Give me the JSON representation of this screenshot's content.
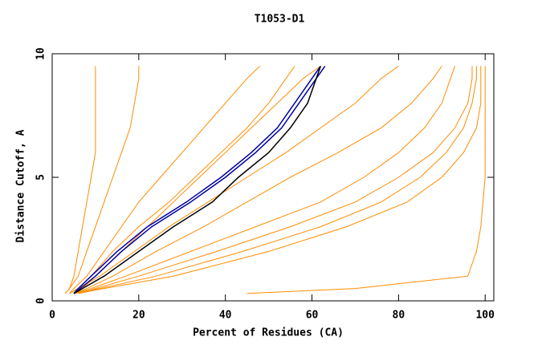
{
  "chart_data": {
    "type": "line",
    "title": "T1053-D1",
    "x_label": "Percent of Residues (CA)",
    "y_label": "Distance Cutoff, A",
    "xlim": [
      0,
      102
    ],
    "ylim": [
      0,
      10
    ],
    "xticks": [
      0,
      20,
      40,
      60,
      80,
      100
    ],
    "yticks": [
      0,
      5,
      10
    ],
    "y": [
      0.3,
      0.5,
      1,
      2,
      3,
      4,
      5,
      6,
      7,
      8,
      9,
      9.5
    ],
    "series": [
      {
        "color": "#ff8c00",
        "x": [
          3,
          4,
          5,
          6,
          7,
          8,
          9,
          10,
          10,
          10,
          10,
          10
        ]
      },
      {
        "color": "#ff8c00",
        "x": [
          3,
          4,
          6,
          8,
          10,
          12,
          14,
          16,
          18,
          19,
          20,
          20
        ]
      },
      {
        "color": "#ff8c00",
        "x": [
          4,
          5,
          8,
          12,
          16,
          20,
          25,
          30,
          35,
          40,
          45,
          48
        ]
      },
      {
        "color": "#ff8c00",
        "x": [
          4,
          6,
          9,
          14,
          20,
          27,
          33,
          39,
          45,
          50,
          54,
          56
        ]
      },
      {
        "color": "#ff8c00",
        "x": [
          5,
          7,
          10,
          16,
          22,
          28,
          34,
          40,
          46,
          52,
          58,
          62
        ]
      },
      {
        "color": "#ff8c00",
        "x": [
          4,
          6,
          11,
          19,
          27,
          36,
          45,
          54,
          62,
          70,
          76,
          80
        ]
      },
      {
        "color": "#ff8c00",
        "x": [
          5,
          8,
          14,
          24,
          35,
          45,
          55,
          66,
          76,
          83,
          88,
          90
        ]
      },
      {
        "color": "#ff8c00",
        "x": [
          5,
          9,
          17,
          32,
          47,
          62,
          72,
          80,
          86,
          90,
          92,
          93
        ]
      },
      {
        "color": "#ff8c00",
        "x": [
          6,
          10,
          20,
          38,
          55,
          70,
          80,
          88,
          93,
          96,
          97,
          97
        ]
      },
      {
        "color": "#ff8c00",
        "x": [
          5,
          11,
          24,
          44,
          62,
          76,
          85,
          91,
          95,
          97,
          98,
          98
        ]
      },
      {
        "color": "#ff8c00",
        "x": [
          6,
          12,
          28,
          50,
          68,
          82,
          90,
          95,
          98,
          99,
          99,
          99
        ]
      },
      {
        "color": "#ff8c00",
        "x": [
          45,
          70,
          96,
          98,
          99,
          99.5,
          100,
          100,
          100,
          100,
          100,
          100
        ]
      },
      {
        "color": "#0000a0",
        "x": [
          5,
          6,
          9,
          15,
          22,
          31,
          39,
          46,
          52,
          56,
          60,
          62
        ]
      },
      {
        "color": "#0000a0",
        "x": [
          5,
          6.5,
          10,
          16,
          23,
          32,
          40,
          47,
          53,
          57,
          61,
          63
        ]
      },
      {
        "color": "#000000",
        "x": [
          5,
          7,
          12,
          20,
          28,
          37,
          43,
          50,
          55,
          59,
          61,
          62
        ]
      }
    ]
  }
}
